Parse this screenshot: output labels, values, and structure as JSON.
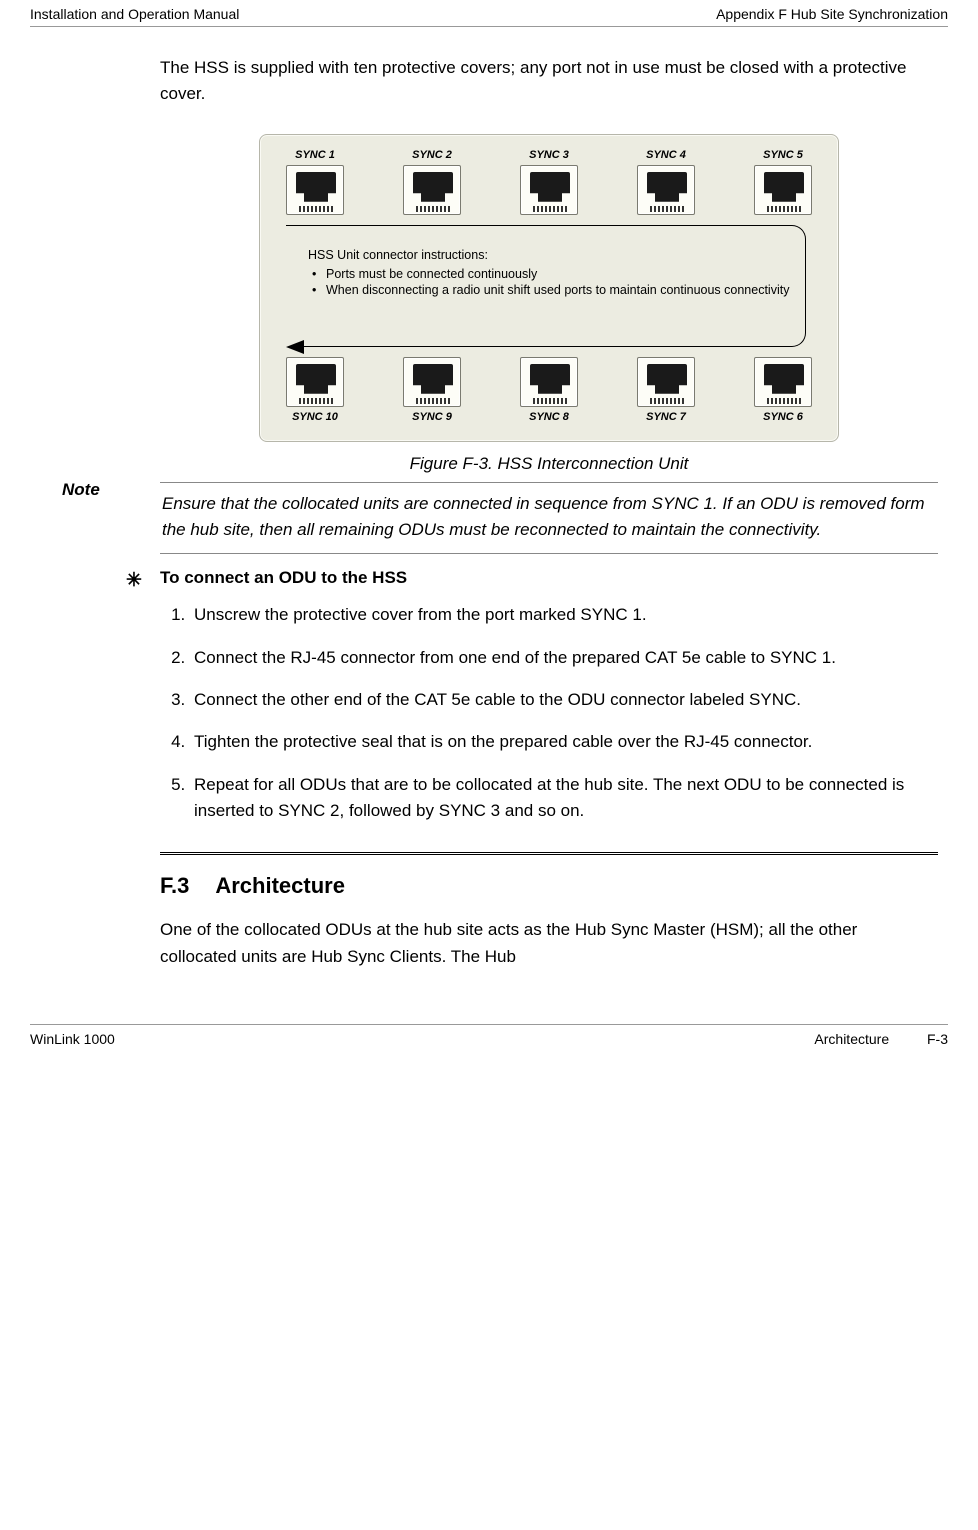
{
  "header": {
    "left": "Installation and Operation Manual",
    "right": "Appendix F  Hub Site Synchronization"
  },
  "intro": "The HSS is supplied with ten protective covers; any port not in use must be closed with a protective cover.",
  "diagram": {
    "top_ports": [
      "SYNC 1",
      "SYNC 2",
      "SYNC 3",
      "SYNC 4",
      "SYNC 5"
    ],
    "bottom_ports": [
      "SYNC 10",
      "SYNC 9",
      "SYNC 8",
      "SYNC 7",
      "SYNC 6"
    ],
    "instr_title": "HSS Unit connector instructions:",
    "instr_items": [
      "Ports must be connected continuously",
      "When disconnecting a radio unit shift used ports to maintain continuous connectivity"
    ],
    "panel_bg": "#ecece1",
    "panel_border": "#b6b6aa"
  },
  "figure_caption": "Figure F-3.  HSS Interconnection Unit",
  "note": {
    "label": "Note",
    "text": "Ensure that the collocated units are connected in sequence from SYNC 1. If an ODU is removed form the hub site, then all remaining ODUs must be reconnected to maintain the connectivity."
  },
  "procedure": {
    "heading": "To connect an ODU to the HSS",
    "steps": [
      "Unscrew the protective cover from the port marked SYNC 1.",
      "Connect the RJ-45 connector from one end of the prepared CAT 5e cable to SYNC 1.",
      "Connect the other end of the CAT 5e cable to the ODU connector labeled SYNC.",
      "Tighten the protective seal that is on the prepared cable over the RJ-45 connector.",
      "Repeat for all ODUs that are to be collocated at the hub site. The next ODU to be connected is inserted to SYNC 2, followed by SYNC 3 and so on."
    ]
  },
  "section": {
    "number": "F.3",
    "title": "Architecture",
    "body": "One of the collocated ODUs at the hub site acts as the Hub Sync Master (HSM); all the other collocated units are Hub Sync Clients. The Hub"
  },
  "footer": {
    "left": "WinLink 1000",
    "right_a": "Architecture",
    "right_b": "F-3"
  }
}
